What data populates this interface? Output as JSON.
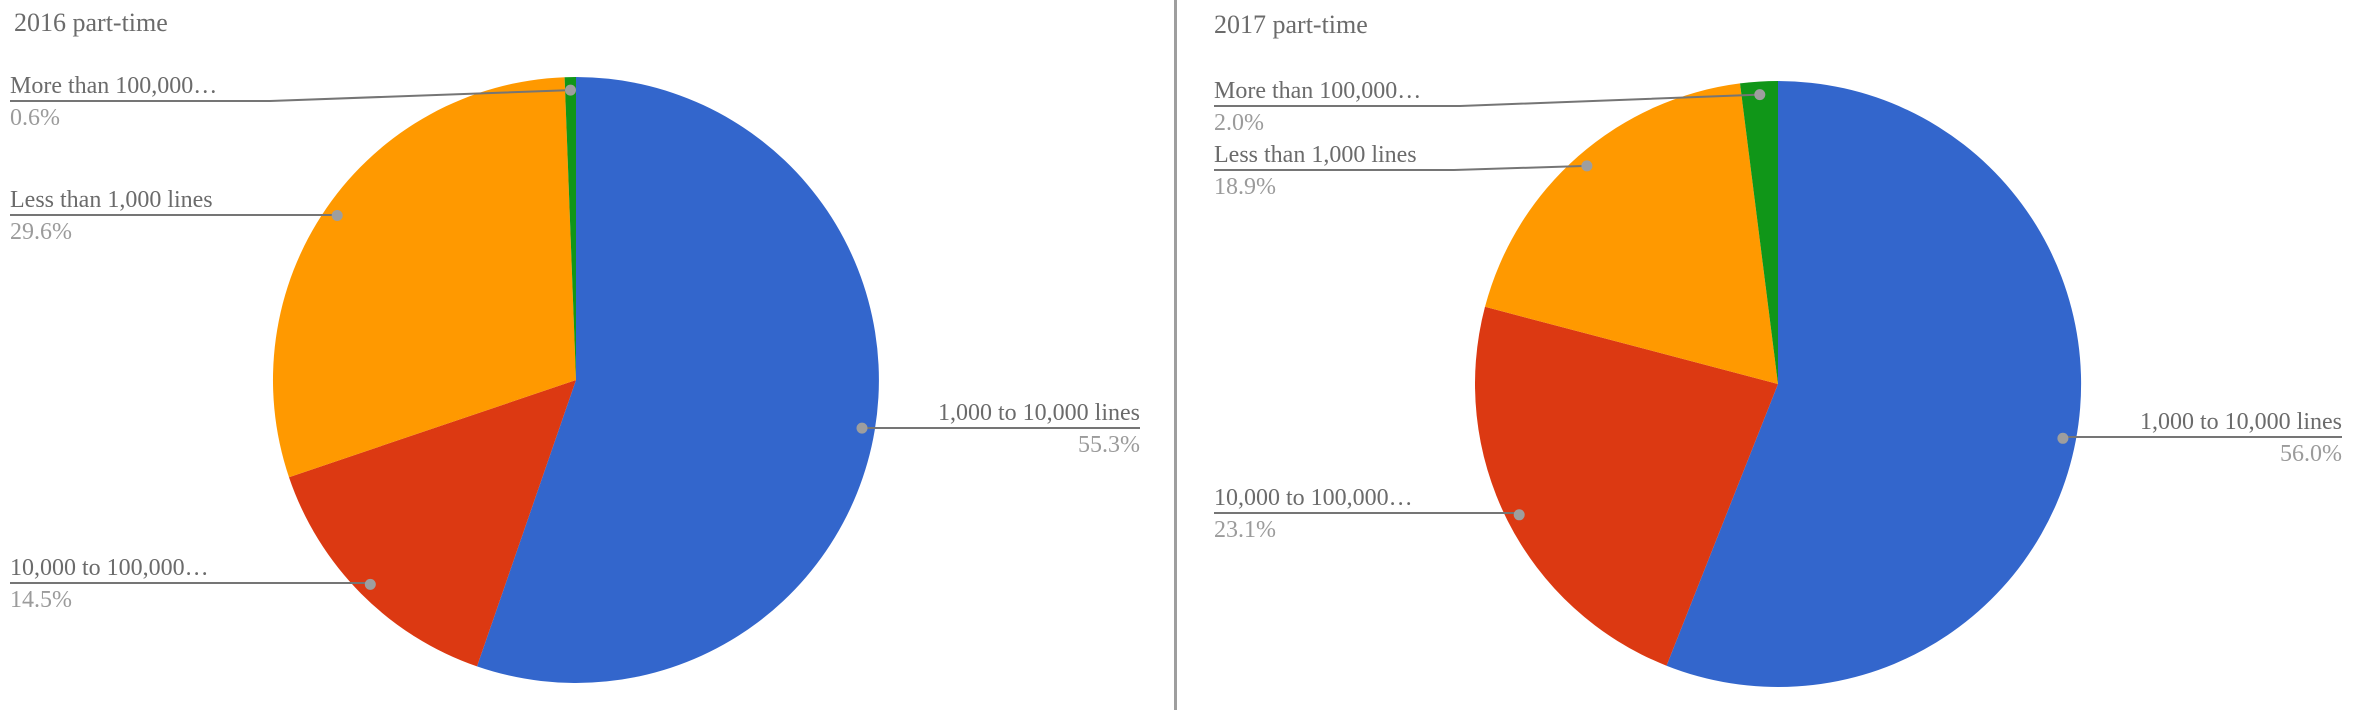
{
  "app": {
    "background_color": "#ffffff",
    "divider_color": "#9e9e9e",
    "leader_line_color": "#757575",
    "leader_dot_color": "#9e9e9e",
    "title_text_color": "#6b6b6b",
    "label_text_color": "#6b6b6b",
    "pct_text_color": "#9b9b9b"
  },
  "chart_data": [
    {
      "type": "pie",
      "title": "2016 part-time",
      "legend_position": "labeled-callouts",
      "start_angle_deg": 0,
      "direction": "clockwise",
      "slices": [
        {
          "label": "1,000 to 10,000 lines",
          "value": 55.3,
          "pct_display": "55.3%",
          "color": "#3366CC"
        },
        {
          "label": "10,000 to 100,000…",
          "value": 14.5,
          "pct_display": "14.5%",
          "color": "#DC3912"
        },
        {
          "label": "Less than 1,000 lines",
          "value": 29.6,
          "pct_display": "29.6%",
          "color": "#FF9900"
        },
        {
          "label": "More than 100,000…",
          "value": 0.6,
          "pct_display": "0.6%",
          "color": "#109618"
        }
      ]
    },
    {
      "type": "pie",
      "title": "2017 part-time",
      "legend_position": "labeled-callouts",
      "start_angle_deg": 0,
      "direction": "clockwise",
      "slices": [
        {
          "label": "1,000 to 10,000 lines",
          "value": 56.0,
          "pct_display": "56.0%",
          "color": "#3366CC"
        },
        {
          "label": "10,000 to 100,000…",
          "value": 23.1,
          "pct_display": "23.1%",
          "color": "#DC3912"
        },
        {
          "label": "Less than 1,000 lines",
          "value": 18.9,
          "pct_display": "18.9%",
          "color": "#FF9900"
        },
        {
          "label": "More than 100,000…",
          "value": 2.0,
          "pct_display": "2.0%",
          "color": "#109618"
        }
      ]
    }
  ]
}
